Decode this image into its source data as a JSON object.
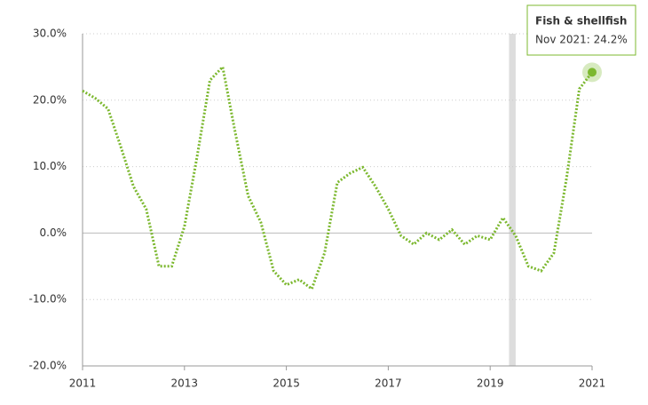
{
  "chart_data": {
    "type": "line",
    "series": [
      {
        "name": "Fish & shellfish",
        "color": "#7cb82f",
        "x": [
          2011.0,
          2011.25,
          2011.5,
          2011.75,
          2012.0,
          2012.25,
          2012.5,
          2012.75,
          2013.0,
          2013.25,
          2013.5,
          2013.75,
          2014.0,
          2014.25,
          2014.5,
          2014.75,
          2015.0,
          2015.25,
          2015.5,
          2015.75,
          2016.0,
          2016.25,
          2016.5,
          2016.75,
          2017.0,
          2017.25,
          2017.5,
          2017.75,
          2018.0,
          2018.25,
          2018.5,
          2018.75,
          2019.0,
          2019.25,
          2019.5,
          2019.75,
          2020.0,
          2020.25,
          2020.5,
          2020.75,
          2021.0
        ],
        "values": [
          21.4,
          20.3,
          18.7,
          13,
          7,
          3.6,
          -5,
          -5,
          1,
          11.6,
          23,
          25,
          15,
          5.6,
          1.6,
          -5.7,
          -7.8,
          -7,
          -8.4,
          -3,
          7.6,
          9,
          9.9,
          7,
          3.6,
          -0.4,
          -1.7,
          0,
          -1,
          0.5,
          -1.7,
          -0.4,
          -1,
          2.3,
          -0.4,
          -5,
          -5.7,
          -3,
          8.3,
          21.7,
          24.2
        ]
      }
    ],
    "annotation": "Nov 2021: 24.2%",
    "shaded_band": [
      2019.37,
      2019.5
    ],
    "xlim": [
      2011,
      2021
    ],
    "xticks": [
      2011,
      2013,
      2015,
      2017,
      2019,
      2021
    ],
    "ylim": [
      -20,
      30
    ],
    "yticks": [
      {
        "value": -20,
        "label": "-20.0%"
      },
      {
        "value": -10,
        "label": "-10.0%"
      },
      {
        "value": 0,
        "label": "0.0%"
      },
      {
        "value": 10,
        "label": "10.0%"
      },
      {
        "value": 20,
        "label": "20.0%"
      },
      {
        "value": 30,
        "label": "30.0%"
      }
    ],
    "grid": true
  }
}
